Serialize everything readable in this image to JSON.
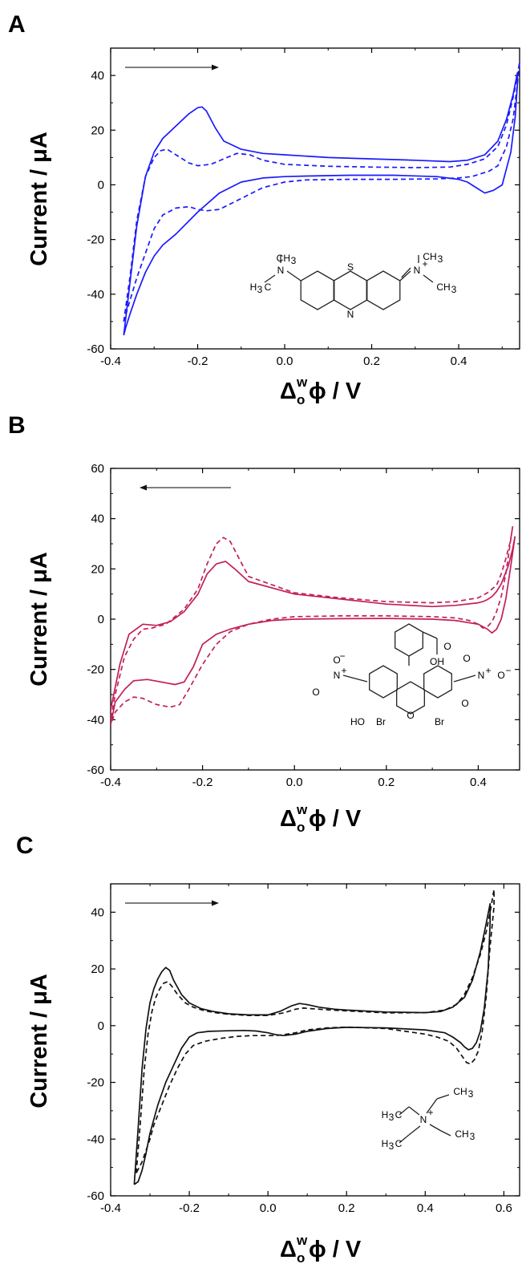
{
  "panels": [
    {
      "letter": "A",
      "ylabel": "Current / μA",
      "xlabel_delta": "Δ",
      "xlabel_sup": "w",
      "xlabel_sub": "o",
      "xlabel_rest": "ϕ / V"
    },
    {
      "letter": "B",
      "ylabel": "Current / μA",
      "xlabel_delta": "Δ",
      "xlabel_sup": "w",
      "xlabel_sub": "o",
      "xlabel_rest": "ϕ / V"
    },
    {
      "letter": "C",
      "ylabel": "Current / μA",
      "xlabel_delta": "Δ",
      "xlabel_sup": "w",
      "xlabel_sub": "o",
      "xlabel_rest": "ϕ / V"
    }
  ],
  "chart_data": [
    {
      "type": "line",
      "panel": "A",
      "ylabel": "Current / μA",
      "xlabel": "Δ_o^w ϕ / V",
      "xlim": [
        -0.4,
        0.54
      ],
      "ylim": [
        -60,
        50
      ],
      "xticks": [
        -0.4,
        -0.2,
        0.0,
        0.2,
        0.4
      ],
      "yticks": [
        -60,
        -40,
        -20,
        0,
        20,
        40
      ],
      "xtick_labels": [
        "-0.4",
        "-0.2",
        "0.0",
        "0.2",
        "0.4"
      ],
      "ytick_labels": [
        "-60",
        "-40",
        "-20",
        "0",
        "20",
        "40"
      ],
      "color": "#1a1aff",
      "scan_arrow": "right",
      "series": [
        {
          "style": "solid",
          "x": [
            -0.37,
            -0.355,
            -0.34,
            -0.32,
            -0.3,
            -0.28,
            -0.26,
            -0.24,
            -0.22,
            -0.2,
            -0.19,
            -0.18,
            -0.16,
            -0.14,
            -0.1,
            -0.05,
            0.0,
            0.1,
            0.2,
            0.3,
            0.38,
            0.42,
            0.46,
            0.49,
            0.51,
            0.525,
            0.535,
            0.535,
            0.53,
            0.52,
            0.5,
            0.48,
            0.46,
            0.44,
            0.42,
            0.4,
            0.35,
            0.25,
            0.15,
            0.05,
            0.0,
            -0.05,
            -0.1,
            -0.15,
            -0.2,
            -0.25,
            -0.28,
            -0.3,
            -0.32,
            -0.34,
            -0.355,
            -0.365,
            -0.37
          ],
          "y": [
            -55,
            -35,
            -15,
            3,
            12,
            17,
            20,
            23,
            26,
            28.2,
            28.5,
            27,
            21,
            16,
            13,
            11.5,
            11,
            10,
            9.5,
            9,
            8.5,
            9,
            11,
            16,
            24,
            33,
            41,
            37,
            25,
            12,
            0,
            -2,
            -3,
            -1,
            1,
            2,
            3,
            3.5,
            3.5,
            3.2,
            3,
            2.5,
            1,
            -3,
            -10,
            -18,
            -22,
            -26,
            -32,
            -40,
            -47,
            -52,
            -55
          ]
        },
        {
          "style": "dashed",
          "x": [
            -0.37,
            -0.355,
            -0.34,
            -0.32,
            -0.3,
            -0.285,
            -0.27,
            -0.25,
            -0.22,
            -0.2,
            -0.17,
            -0.14,
            -0.11,
            -0.08,
            -0.05,
            0.0,
            0.1,
            0.2,
            0.3,
            0.38,
            0.42,
            0.46,
            0.49,
            0.51,
            0.525,
            0.535,
            0.54,
            0.535,
            0.525,
            0.51,
            0.49,
            0.47,
            0.45,
            0.43,
            0.4,
            0.35,
            0.25,
            0.15,
            0.05,
            0.0,
            -0.05,
            -0.1,
            -0.15,
            -0.18,
            -0.2,
            -0.22,
            -0.25,
            -0.28,
            -0.3,
            -0.32,
            -0.34,
            -0.355,
            -0.37
          ],
          "y": [
            -50,
            -33,
            -13,
            3,
            10,
            12.5,
            13,
            11,
            8,
            7,
            7.5,
            9.5,
            11.5,
            11,
            9,
            7.5,
            6.8,
            6.5,
            6.3,
            6.5,
            7.5,
            9.5,
            14,
            22,
            32,
            40,
            45,
            37,
            24,
            14,
            7,
            5,
            4,
            3,
            2.5,
            2.2,
            2.0,
            2.0,
            1.8,
            1,
            -1,
            -5,
            -9,
            -9.5,
            -9,
            -8,
            -8.5,
            -11,
            -16,
            -25,
            -34,
            -42,
            -50
          ]
        }
      ]
    },
    {
      "type": "line",
      "panel": "B",
      "ylabel": "Current / μA",
      "xlabel": "Δ_o^w ϕ / V",
      "xlim": [
        -0.4,
        0.49
      ],
      "ylim": [
        -60,
        60
      ],
      "xticks": [
        -0.4,
        -0.2,
        0.0,
        0.2,
        0.4
      ],
      "yticks": [
        -60,
        -40,
        -20,
        0,
        20,
        40,
        60
      ],
      "xtick_labels": [
        "-0.4",
        "-0.2",
        "0.0",
        "0.2",
        "0.4"
      ],
      "ytick_labels": [
        "-60",
        "-40",
        "-20",
        "0",
        "20",
        "40",
        "60"
      ],
      "color": "#c21f5b",
      "scan_arrow": "left",
      "series": [
        {
          "style": "solid",
          "x": [
            0.48,
            0.475,
            0.465,
            0.45,
            0.44,
            0.43,
            0.42,
            0.41,
            0.4,
            0.35,
            0.3,
            0.2,
            0.1,
            0.0,
            -0.1,
            -0.13,
            -0.15,
            -0.17,
            -0.19,
            -0.21,
            -0.24,
            -0.27,
            -0.3,
            -0.33,
            -0.36,
            -0.38,
            -0.4,
            -0.4,
            -0.39,
            -0.37,
            -0.35,
            -0.32,
            -0.29,
            -0.26,
            -0.24,
            -0.22,
            -0.2,
            -0.17,
            -0.14,
            -0.1,
            -0.05,
            0.0,
            0.1,
            0.2,
            0.3,
            0.35,
            0.4,
            0.42,
            0.43,
            0.44,
            0.45,
            0.46,
            0.47,
            0.48
          ],
          "y": [
            33,
            28,
            21,
            14,
            11,
            9,
            7.8,
            7,
            6.5,
            5.5,
            5,
            6,
            8,
            10,
            15,
            20,
            23,
            22,
            18,
            10,
            3,
            -1,
            -2.5,
            -2,
            -6,
            -18,
            -36,
            -42,
            -33,
            -28,
            -24.5,
            -24,
            -25,
            -26,
            -25,
            -19,
            -10,
            -6,
            -4,
            -2,
            -0.5,
            0,
            0.2,
            0.3,
            0,
            -0.5,
            -2,
            -4,
            -5.5,
            -4,
            0,
            8,
            20,
            33
          ]
        },
        {
          "style": "dashed",
          "x": [
            0.475,
            0.47,
            0.46,
            0.45,
            0.44,
            0.42,
            0.4,
            0.35,
            0.3,
            0.2,
            0.1,
            0.0,
            -0.1,
            -0.12,
            -0.14,
            -0.155,
            -0.17,
            -0.19,
            -0.21,
            -0.24,
            -0.28,
            -0.31,
            -0.33,
            -0.35,
            -0.37,
            -0.39,
            -0.4,
            -0.4,
            -0.39,
            -0.37,
            -0.35,
            -0.33,
            -0.3,
            -0.27,
            -0.25,
            -0.23,
            -0.2,
            -0.17,
            -0.14,
            -0.1,
            -0.05,
            0.0,
            0.1,
            0.2,
            0.3,
            0.35,
            0.38,
            0.4,
            0.41,
            0.42,
            0.43,
            0.44,
            0.45,
            0.46,
            0.475
          ],
          "y": [
            37,
            31,
            24,
            18,
            13.5,
            10.5,
            8.5,
            7,
            6.5,
            7,
            8.5,
            10.5,
            17,
            24,
            31,
            32.5,
            30,
            22,
            12,
            4,
            -2,
            -3.5,
            -4,
            -8,
            -15,
            -30,
            -40,
            -42,
            -37,
            -33,
            -31,
            -31.5,
            -34,
            -35,
            -34,
            -28,
            -18,
            -10,
            -5,
            -2,
            0,
            1,
            1.3,
            1.3,
            1,
            0.5,
            -0.5,
            -2,
            -3.5,
            -3,
            -1,
            3,
            9,
            18,
            37
          ]
        }
      ]
    },
    {
      "type": "line",
      "panel": "C",
      "ylabel": "Current / μA",
      "xlabel": "Δ_o^w ϕ / V",
      "xlim": [
        -0.4,
        0.64
      ],
      "ylim": [
        -60,
        50
      ],
      "xticks": [
        -0.4,
        -0.2,
        0.0,
        0.2,
        0.4,
        0.6
      ],
      "yticks": [
        -60,
        -40,
        -20,
        0,
        20,
        40
      ],
      "xtick_labels": [
        "-0.4",
        "-0.2",
        "0.0",
        "0.2",
        "0.4",
        "0.6"
      ],
      "ytick_labels": [
        "-60",
        "-40",
        "-20",
        "0",
        "20",
        "40"
      ],
      "color": "#111111",
      "scan_arrow": "right",
      "series": [
        {
          "style": "solid",
          "x": [
            -0.34,
            -0.33,
            -0.32,
            -0.31,
            -0.3,
            -0.29,
            -0.28,
            -0.27,
            -0.26,
            -0.25,
            -0.24,
            -0.22,
            -0.2,
            -0.17,
            -0.14,
            -0.1,
            -0.05,
            0.0,
            0.03,
            0.06,
            0.08,
            0.1,
            0.13,
            0.17,
            0.2,
            0.3,
            0.4,
            0.44,
            0.47,
            0.5,
            0.52,
            0.54,
            0.555,
            0.565,
            0.565,
            0.56,
            0.55,
            0.54,
            0.53,
            0.52,
            0.51,
            0.5,
            0.49,
            0.47,
            0.45,
            0.4,
            0.3,
            0.2,
            0.15,
            0.1,
            0.07,
            0.04,
            0.02,
            0.0,
            -0.03,
            -0.06,
            -0.1,
            -0.15,
            -0.18,
            -0.2,
            -0.22,
            -0.24,
            -0.26,
            -0.28,
            -0.3,
            -0.31,
            -0.32,
            -0.33,
            -0.34
          ],
          "y": [
            -56,
            -36,
            -15,
            -1,
            8,
            13,
            16.5,
            19,
            20.5,
            19.5,
            16,
            11,
            8,
            6,
            5,
            4.2,
            3.8,
            3.8,
            5,
            7,
            7.8,
            7.4,
            6.5,
            5.8,
            5.5,
            4.8,
            4.6,
            5,
            6.5,
            10,
            16,
            26,
            36,
            43,
            36,
            20,
            6,
            -2,
            -6,
            -8,
            -8.5,
            -7.5,
            -6,
            -4,
            -2.5,
            -1.5,
            -0.8,
            -0.6,
            -1,
            -2,
            -3,
            -3.5,
            -3.2,
            -2.5,
            -1.9,
            -1.7,
            -1.8,
            -2,
            -2.5,
            -4,
            -8,
            -14,
            -20,
            -28,
            -38,
            -45,
            -51,
            -55,
            -56
          ]
        },
        {
          "style": "dashed",
          "x": [
            -0.335,
            -0.325,
            -0.315,
            -0.305,
            -0.295,
            -0.285,
            -0.275,
            -0.265,
            -0.255,
            -0.245,
            -0.23,
            -0.21,
            -0.19,
            -0.16,
            -0.13,
            -0.1,
            -0.05,
            0.0,
            0.04,
            0.07,
            0.09,
            0.11,
            0.15,
            0.2,
            0.3,
            0.4,
            0.45,
            0.48,
            0.5,
            0.52,
            0.54,
            0.555,
            0.565,
            0.575,
            0.575,
            0.565,
            0.555,
            0.545,
            0.535,
            0.525,
            0.515,
            0.505,
            0.495,
            0.48,
            0.46,
            0.43,
            0.4,
            0.3,
            0.2,
            0.15,
            0.1,
            0.07,
            0.04,
            0.02,
            0.0,
            -0.04,
            -0.08,
            -0.12,
            -0.16,
            -0.19,
            -0.21,
            -0.23,
            -0.25,
            -0.27,
            -0.29,
            -0.3,
            -0.31,
            -0.32,
            -0.335
          ],
          "y": [
            -52,
            -35,
            -16,
            -3,
            5,
            10,
            13,
            15,
            15.5,
            14,
            11,
            8,
            6.5,
            5.2,
            4.5,
            4.0,
            3.6,
            3.6,
            4.5,
            5.8,
            6.2,
            6,
            5.6,
            5.2,
            4.5,
            4.6,
            5.5,
            7.5,
            11,
            17,
            25,
            33,
            40,
            48,
            42,
            28,
            10,
            -2,
            -9,
            -12,
            -13.5,
            -13,
            -11,
            -8,
            -5.5,
            -4,
            -3,
            -1,
            -0.5,
            -0.8,
            -1.5,
            -2.5,
            -3.2,
            -3.5,
            -3.5,
            -3.5,
            -3.8,
            -4.5,
            -5.5,
            -7,
            -10,
            -15,
            -21,
            -28,
            -35,
            -40,
            -44,
            -48,
            -52
          ]
        }
      ]
    }
  ],
  "molecules": {
    "A": {
      "labels": [
        "CH3",
        "H3C",
        "N",
        "S",
        "N+",
        "CH3",
        "CH3",
        "N"
      ]
    },
    "B": {
      "labels": [
        "O-",
        "N+",
        "O",
        "OH",
        "O",
        "N+",
        "O-",
        "O",
        "HO",
        "Br",
        "O",
        "Br",
        "O",
        "O"
      ]
    },
    "C": {
      "labels": [
        "H3C",
        "CH3",
        "N+",
        "H3C",
        "CH3"
      ]
    }
  }
}
